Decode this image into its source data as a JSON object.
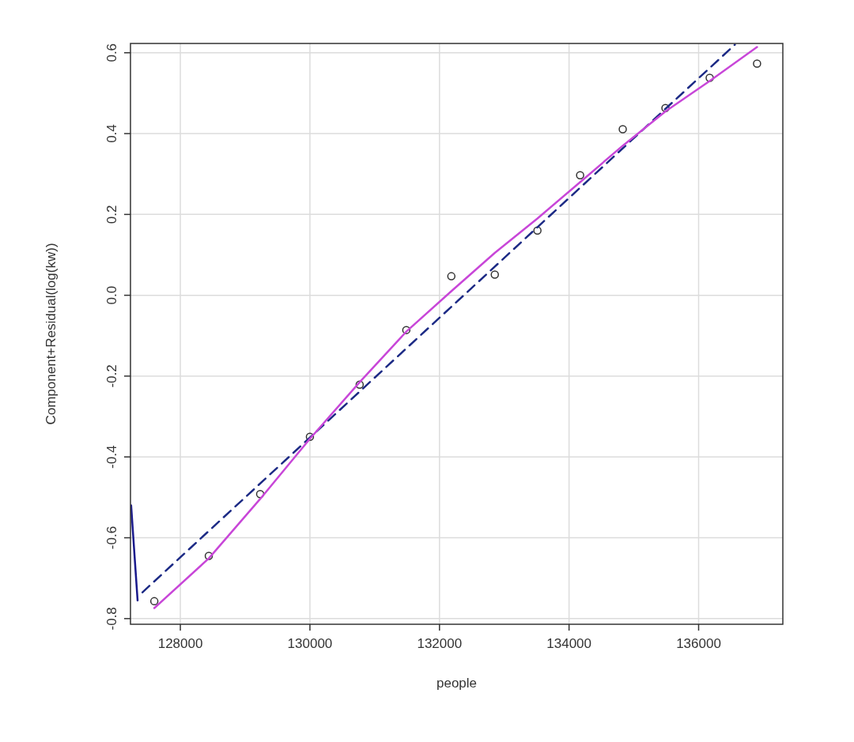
{
  "chart_data": {
    "type": "scatter",
    "xlabel": "people",
    "ylabel": "Component+Residual(log(kw))",
    "xlim": [
      127230,
      137300
    ],
    "ylim": [
      -0.814,
      0.623
    ],
    "xticks": [
      128000,
      130000,
      132000,
      134000,
      136000
    ],
    "yticks": [
      {
        "value": -0.8,
        "label": "-0.8"
      },
      {
        "value": -0.6,
        "label": "-0.6"
      },
      {
        "value": -0.4,
        "label": "-0.4"
      },
      {
        "value": -0.2,
        "label": "-0.2"
      },
      {
        "value": 0,
        "label": "0.0"
      },
      {
        "value": 0.2,
        "label": "0.2"
      },
      {
        "value": 0.4,
        "label": "0.4"
      },
      {
        "value": 0.6,
        "label": "0.6"
      }
    ],
    "grid": true,
    "series": [
      {
        "marker": "circle",
        "color": "#333333",
        "x": [
          127598,
          128439,
          129232,
          130000,
          130768,
          131488,
          132183,
          132854,
          133512,
          134171,
          134829,
          135488,
          136171,
          136902
        ],
        "values": [
          -0.757,
          -0.645,
          -0.492,
          -0.35,
          -0.221,
          -0.086,
          0.047,
          0.051,
          0.16,
          0.297,
          0.411,
          0.463,
          0.538,
          0.573
        ]
      },
      {
        "type": "line",
        "line_style": "dashed",
        "color": "#1c2a85",
        "x": [
          127415,
          136560
        ],
        "values": [
          -0.735,
          0.62
        ]
      },
      {
        "type": "line",
        "line_style": "solid",
        "color": "#c846d8",
        "x": [
          127598,
          128439,
          129232,
          130000,
          130768,
          131488,
          132183,
          132854,
          133512,
          134171,
          134829,
          135488,
          136171,
          136902
        ],
        "values": [
          -0.774,
          -0.651,
          -0.504,
          -0.355,
          -0.215,
          -0.09,
          0.01,
          0.105,
          0.19,
          0.28,
          0.37,
          0.455,
          0.53,
          0.614
        ]
      },
      {
        "type": "line",
        "line_style": "solid",
        "color": "#1a1a8c",
        "x": [
          127240,
          127340
        ],
        "values": [
          -0.52,
          -0.755
        ]
      }
    ]
  }
}
